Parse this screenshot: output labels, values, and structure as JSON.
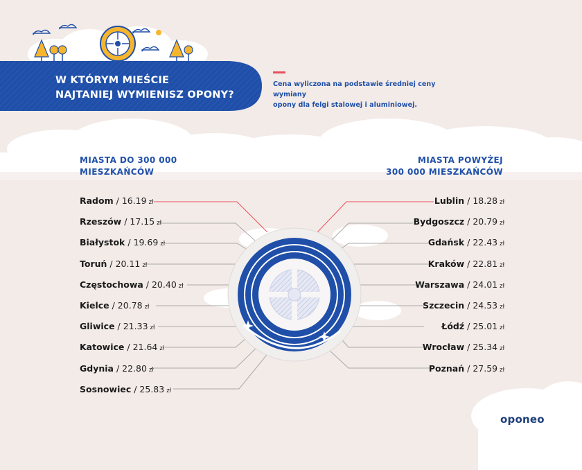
{
  "header": {
    "title_line1": "W KTÓRYM MIEŚCIE",
    "title_line2": "NAJTANIEJ WYMIENISZ OPONY?"
  },
  "note": {
    "line1": "Cena wyliczona na podstawie średniej ceny wymiany",
    "line2": "opony dla felgi stalowej i aluminiowej."
  },
  "left_group": {
    "heading_line1": "MIASTA DO 300 000",
    "heading_line2": "MIESZKAŃCÓW",
    "cities": [
      {
        "name": "Radom",
        "price": "16.19",
        "currency": "zł",
        "highlight": true
      },
      {
        "name": "Rzeszów",
        "price": "17.15",
        "currency": "zł"
      },
      {
        "name": "Białystok",
        "price": "19.69",
        "currency": "zł"
      },
      {
        "name": "Toruń",
        "price": "20.11",
        "currency": "zł"
      },
      {
        "name": "Częstochowa",
        "price": "20.40",
        "currency": "zł"
      },
      {
        "name": "Kielce",
        "price": "20.78",
        "currency": "zł"
      },
      {
        "name": "Gliwice",
        "price": "21.33",
        "currency": "zł"
      },
      {
        "name": "Katowice",
        "price": "21.64",
        "currency": "zł"
      },
      {
        "name": "Gdynia",
        "price": "22.80",
        "currency": "zł"
      },
      {
        "name": "Sosnowiec",
        "price": "25.83",
        "currency": "zł"
      }
    ]
  },
  "right_group": {
    "heading_line1": "MIASTA POWYŻEJ",
    "heading_line2": "300 000 MIESZKAŃCÓW",
    "cities": [
      {
        "name": "Lublin",
        "price": "18.28",
        "currency": "zł",
        "highlight": true
      },
      {
        "name": "Bydgoszcz",
        "price": "20.79",
        "currency": "zł"
      },
      {
        "name": "Gdańsk",
        "price": "22.43",
        "currency": "zł"
      },
      {
        "name": "Kraków",
        "price": "22.81",
        "currency": "zł"
      },
      {
        "name": "Warszawa",
        "price": "24.01",
        "currency": "zł"
      },
      {
        "name": "Szczecin",
        "price": "24.53",
        "currency": "zł"
      },
      {
        "name": "Łódź",
        "price": "25.01",
        "currency": "zł"
      },
      {
        "name": "Wrocław",
        "price": "25.34",
        "currency": "zł"
      },
      {
        "name": "Poznań",
        "price": "27.59",
        "currency": "zł"
      }
    ]
  },
  "logo": "oponeo",
  "colors": {
    "background": "#f3ebe8",
    "brand_blue": "#1f4fa8",
    "accent_red": "#e8505b",
    "connector_gray": "#a9a9a9",
    "cloud": "#ffffff",
    "tire_yellow": "#f6b52e"
  }
}
